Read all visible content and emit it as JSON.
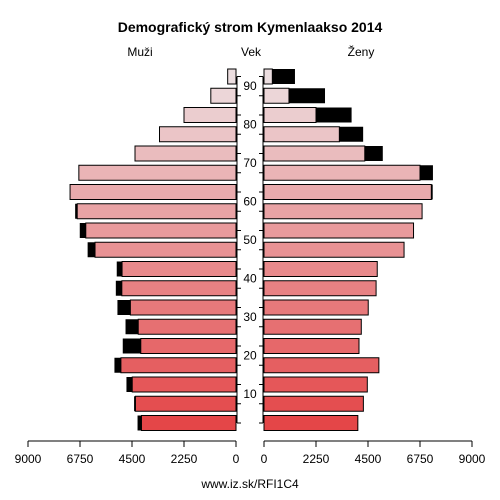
{
  "chart_data": {
    "type": "bar",
    "title": "Demografický strom Kymenlaakso 2014",
    "left_label": "Muži",
    "center_label": "Vek",
    "right_label": "Ženy",
    "footer": "www.iz.sk/RFI1C4",
    "x_ticks_left": [
      "9000",
      "6750",
      "4500",
      "2250",
      "0"
    ],
    "x_ticks_right": [
      "0",
      "2250",
      "4500",
      "6750",
      "9000"
    ],
    "xlim": [
      0,
      9000
    ],
    "age_ticks": [
      "10",
      "20",
      "30",
      "40",
      "50",
      "60",
      "70",
      "80",
      "90"
    ],
    "age_groups": [
      "0-4",
      "5-9",
      "10-14",
      "15-19",
      "20-24",
      "25-29",
      "30-34",
      "35-39",
      "40-44",
      "45-49",
      "50-54",
      "55-59",
      "60-64",
      "65-69",
      "70-74",
      "75-79",
      "80-84",
      "85-89",
      "90+"
    ],
    "series": [
      {
        "name": "Muži",
        "base": [
          4090,
          4350,
          4490,
          4980,
          4120,
          4230,
          4570,
          4940,
          4930,
          6100,
          6500,
          6870,
          7180,
          6800,
          4370,
          3310,
          2250,
          1090,
          360
        ],
        "excess": [
          170,
          60,
          250,
          280,
          780,
          550,
          560,
          260,
          230,
          320,
          260,
          90,
          0,
          0,
          0,
          0,
          0,
          0,
          0
        ]
      },
      {
        "name": "Ženy",
        "base": [
          4060,
          4300,
          4470,
          4970,
          4110,
          4210,
          4510,
          4850,
          4900,
          6060,
          6470,
          6840,
          7240,
          6750,
          4360,
          3260,
          2250,
          1080,
          360
        ]
      },
      {
        "name": "Ženy – prebytok",
        "values": [
          0,
          0,
          0,
          0,
          0,
          0,
          0,
          0,
          0,
          0,
          0,
          0,
          60,
          560,
          780,
          1030,
          1540,
          1560,
          980
        ]
      }
    ]
  }
}
